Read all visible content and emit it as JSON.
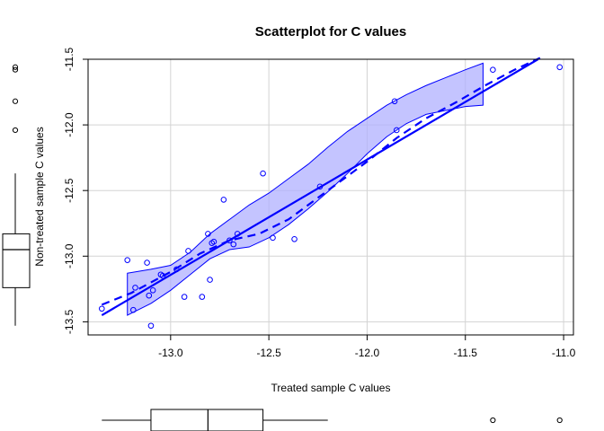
{
  "chart_data": {
    "type": "scatter",
    "title": "Scatterplot for C values",
    "xlabel": "Treated sample C values",
    "ylabel": "Non-treated sample C values",
    "xlim": [
      -13.42,
      -10.95
    ],
    "ylim": [
      -11.5,
      -13.6
    ],
    "xticks": [
      -13.0,
      -12.5,
      -12.0,
      -11.5,
      -11.0
    ],
    "xtick_labels": [
      "-13.0",
      "-12.5",
      "-12.0",
      "-11.5",
      "-11.0"
    ],
    "yticks": [
      -11.5,
      -12.0,
      -12.5,
      -13.0,
      -13.5
    ],
    "ytick_labels": [
      "-11.5",
      "-12.0",
      "-12.5",
      "-13.0",
      "-13.5"
    ],
    "grid": true,
    "colors": {
      "points": "#0000ff",
      "lines": "#0000ff",
      "band": "#b0b0ff",
      "grid": "#d3d3d3",
      "axes": "#000000"
    },
    "points": [
      {
        "x": -13.35,
        "y": -13.4
      },
      {
        "x": -13.22,
        "y": -13.03
      },
      {
        "x": -13.19,
        "y": -13.41
      },
      {
        "x": -13.18,
        "y": -13.24
      },
      {
        "x": -13.12,
        "y": -13.05
      },
      {
        "x": -13.11,
        "y": -13.3
      },
      {
        "x": -13.1,
        "y": -13.53
      },
      {
        "x": -13.09,
        "y": -13.26
      },
      {
        "x": -13.05,
        "y": -13.14
      },
      {
        "x": -13.04,
        "y": -13.15
      },
      {
        "x": -12.97,
        "y": -13.1
      },
      {
        "x": -12.93,
        "y": -13.31
      },
      {
        "x": -12.91,
        "y": -12.96
      },
      {
        "x": -12.84,
        "y": -13.31
      },
      {
        "x": -12.81,
        "y": -12.83
      },
      {
        "x": -12.8,
        "y": -13.18
      },
      {
        "x": -12.79,
        "y": -12.9
      },
      {
        "x": -12.78,
        "y": -12.89
      },
      {
        "x": -12.73,
        "y": -12.57
      },
      {
        "x": -12.7,
        "y": -12.88
      },
      {
        "x": -12.68,
        "y": -12.91
      },
      {
        "x": -12.66,
        "y": -12.83
      },
      {
        "x": -12.53,
        "y": -12.37
      },
      {
        "x": -12.48,
        "y": -12.86
      },
      {
        "x": -12.37,
        "y": -12.87
      },
      {
        "x": -12.24,
        "y": -12.47
      },
      {
        "x": -11.86,
        "y": -11.82
      },
      {
        "x": -11.85,
        "y": -12.04
      },
      {
        "x": -11.36,
        "y": -11.58
      },
      {
        "x": -11.02,
        "y": -11.56
      }
    ],
    "regression_line": {
      "x": [
        -13.35,
        -11.13
      ],
      "y": [
        -13.45,
        -11.5
      ]
    },
    "smooth_line": {
      "x": [
        -13.35,
        -13.2,
        -13.0,
        -12.85,
        -12.7,
        -12.55,
        -12.4,
        -12.2,
        -12.0,
        -11.85,
        -11.7,
        -11.55,
        -11.4,
        -11.25,
        -11.12
      ],
      "y": [
        -13.37,
        -13.28,
        -13.12,
        -12.98,
        -12.88,
        -12.83,
        -12.72,
        -12.5,
        -12.28,
        -12.1,
        -11.95,
        -11.83,
        -11.7,
        -11.58,
        -11.49
      ]
    },
    "confidence_band": {
      "x": [
        -13.22,
        -13.1,
        -13.0,
        -12.9,
        -12.8,
        -12.7,
        -12.6,
        -12.5,
        -12.4,
        -12.3,
        -12.2,
        -12.1,
        -12.0,
        -11.9,
        -11.8,
        -11.7,
        -11.6,
        -11.5,
        -11.41
      ],
      "upper": [
        -13.13,
        -13.1,
        -13.07,
        -12.97,
        -12.83,
        -12.72,
        -12.61,
        -12.52,
        -12.41,
        -12.3,
        -12.17,
        -12.05,
        -11.95,
        -11.85,
        -11.77,
        -11.7,
        -11.64,
        -11.58,
        -11.53
      ],
      "lower": [
        -13.45,
        -13.36,
        -13.26,
        -13.14,
        -13.02,
        -12.95,
        -12.93,
        -12.86,
        -12.76,
        -12.64,
        -12.51,
        -12.37,
        -12.22,
        -12.09,
        -11.99,
        -11.92,
        -11.89,
        -11.86,
        -11.85
      ]
    },
    "x_boxplot": {
      "whisker_low": -13.35,
      "q1": -13.1,
      "median": -12.81,
      "q3": -12.53,
      "whisker_high": -12.2,
      "outliers": [
        -11.36,
        -11.02
      ]
    },
    "y_boxplot": {
      "whisker_low": -13.53,
      "q1": -13.24,
      "median": -12.95,
      "q3": -12.83,
      "whisker_high": -12.37,
      "outliers": [
        -12.04,
        -11.82,
        -11.58,
        -11.56
      ]
    }
  }
}
